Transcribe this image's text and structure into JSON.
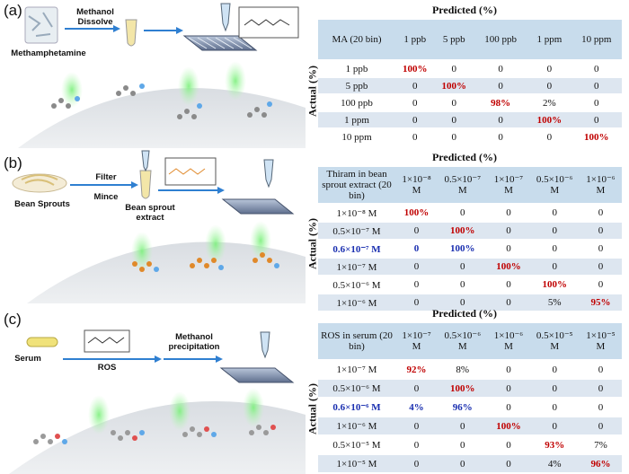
{
  "colors": {
    "red": "#c00000",
    "blue": "#1a2fb0",
    "header": "#c8dcec",
    "row_alt": "#dde6f0",
    "beam": "#8cf08c"
  },
  "panel_a": {
    "label": "(a)",
    "sample_label": "Methamphetamine",
    "step_label": "Methanol\nDissolve",
    "predicted": "Predicted (%)",
    "actual": "Actual (%)",
    "corner": "MA (20 bin)",
    "columns": [
      "1 ppb",
      "5 ppb",
      "100 ppb",
      "1 ppm",
      "10 ppm"
    ],
    "rows": [
      {
        "label": "1 ppb",
        "cells": [
          {
            "v": "100%",
            "s": "red"
          },
          {
            "v": "0"
          },
          {
            "v": "0"
          },
          {
            "v": "0"
          },
          {
            "v": "0"
          }
        ]
      },
      {
        "label": "5 ppb",
        "cells": [
          {
            "v": "0"
          },
          {
            "v": "100%",
            "s": "red"
          },
          {
            "v": "0"
          },
          {
            "v": "0"
          },
          {
            "v": "0"
          }
        ]
      },
      {
        "label": "100 ppb",
        "cells": [
          {
            "v": "0"
          },
          {
            "v": "0"
          },
          {
            "v": "98%",
            "s": "red"
          },
          {
            "v": "2%"
          },
          {
            "v": "0"
          }
        ]
      },
      {
        "label": "1 ppm",
        "cells": [
          {
            "v": "0"
          },
          {
            "v": "0"
          },
          {
            "v": "0"
          },
          {
            "v": "100%",
            "s": "red"
          },
          {
            "v": "0"
          }
        ]
      },
      {
        "label": "10 ppm",
        "cells": [
          {
            "v": "0"
          },
          {
            "v": "0"
          },
          {
            "v": "0"
          },
          {
            "v": "0"
          },
          {
            "v": "100%",
            "s": "red"
          }
        ]
      }
    ]
  },
  "panel_b": {
    "label": "(b)",
    "sample_label": "Bean Sprouts",
    "step1": "Filter",
    "step2": "Mince",
    "product_label": "Bean sprout\nextract",
    "predicted": "Predicted (%)",
    "actual": "Actual (%)",
    "corner": "Thiram in bean sprout extract (20 bin)",
    "columns": [
      "1×10⁻⁸ M",
      "0.5×10⁻⁷ M",
      "1×10⁻⁷ M",
      "0.5×10⁻⁶ M",
      "1×10⁻⁶ M"
    ],
    "rows": [
      {
        "label": "1×10⁻⁸ M",
        "cells": [
          {
            "v": "100%",
            "s": "red"
          },
          {
            "v": "0"
          },
          {
            "v": "0"
          },
          {
            "v": "0"
          },
          {
            "v": "0"
          }
        ]
      },
      {
        "label": "0.5×10⁻⁷ M",
        "cells": [
          {
            "v": "0"
          },
          {
            "v": "100%",
            "s": "red"
          },
          {
            "v": "0"
          },
          {
            "v": "0"
          },
          {
            "v": "0"
          }
        ]
      },
      {
        "label": "0.6×10⁻⁷ M",
        "lab_style": "blue",
        "cells": [
          {
            "v": "0",
            "s": "blue"
          },
          {
            "v": "100%",
            "s": "blue"
          },
          {
            "v": "0"
          },
          {
            "v": "0"
          },
          {
            "v": "0"
          }
        ]
      },
      {
        "label": "1×10⁻⁷ M",
        "cells": [
          {
            "v": "0"
          },
          {
            "v": "0"
          },
          {
            "v": "100%",
            "s": "red"
          },
          {
            "v": "0"
          },
          {
            "v": "0"
          }
        ]
      },
      {
        "label": "0.5×10⁻⁶ M",
        "cells": [
          {
            "v": "0"
          },
          {
            "v": "0"
          },
          {
            "v": "0"
          },
          {
            "v": "100%",
            "s": "red"
          },
          {
            "v": "0"
          }
        ]
      },
      {
        "label": "1×10⁻⁶ M",
        "cells": [
          {
            "v": "0"
          },
          {
            "v": "0"
          },
          {
            "v": "0"
          },
          {
            "v": "5%"
          },
          {
            "v": "95%",
            "s": "red"
          }
        ]
      }
    ]
  },
  "panel_c": {
    "label": "(c)",
    "sample_label": "Serum",
    "step1": "ROS",
    "step2": "Methanol\nprecipitation",
    "predicted": "Predicted (%)",
    "actual": "Actual (%)",
    "corner": "ROS in serum (20 bin)",
    "columns": [
      "1×10⁻⁷ M",
      "0.5×10⁻⁶ M",
      "1×10⁻⁶ M",
      "0.5×10⁻⁵ M",
      "1×10⁻⁵ M"
    ],
    "rows": [
      {
        "label": "1×10⁻⁷ M",
        "cells": [
          {
            "v": "92%",
            "s": "red"
          },
          {
            "v": "8%"
          },
          {
            "v": "0"
          },
          {
            "v": "0"
          },
          {
            "v": "0"
          }
        ]
      },
      {
        "label": "0.5×10⁻⁶ M",
        "cells": [
          {
            "v": "0"
          },
          {
            "v": "100%",
            "s": "red"
          },
          {
            "v": "0"
          },
          {
            "v": "0"
          },
          {
            "v": "0"
          }
        ]
      },
      {
        "label": "0.6×10⁻⁶ M",
        "lab_style": "blue",
        "cells": [
          {
            "v": "4%",
            "s": "blue"
          },
          {
            "v": "96%",
            "s": "blue"
          },
          {
            "v": "0"
          },
          {
            "v": "0"
          },
          {
            "v": "0"
          }
        ]
      },
      {
        "label": "1×10⁻⁶ M",
        "cells": [
          {
            "v": "0"
          },
          {
            "v": "0"
          },
          {
            "v": "100%",
            "s": "red"
          },
          {
            "v": "0"
          },
          {
            "v": "0"
          }
        ]
      },
      {
        "label": "0.5×10⁻⁵ M",
        "cells": [
          {
            "v": "0"
          },
          {
            "v": "0"
          },
          {
            "v": "0"
          },
          {
            "v": "93%",
            "s": "red"
          },
          {
            "v": "7%"
          }
        ]
      },
      {
        "label": "1×10⁻⁵ M",
        "cells": [
          {
            "v": "0"
          },
          {
            "v": "0"
          },
          {
            "v": "0"
          },
          {
            "v": "4%"
          },
          {
            "v": "96%",
            "s": "red"
          }
        ]
      }
    ]
  }
}
